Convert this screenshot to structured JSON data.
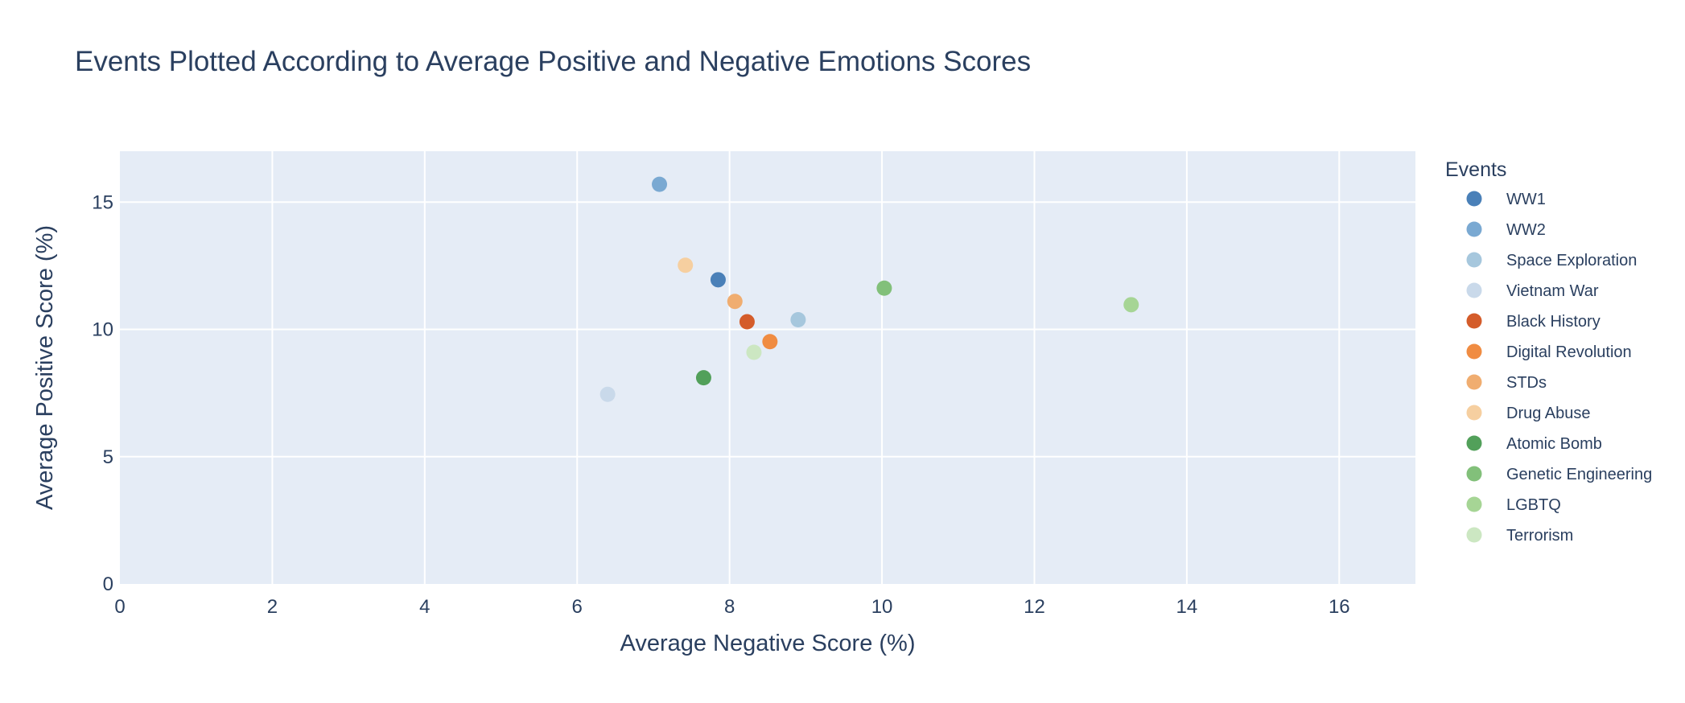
{
  "chart_data": {
    "type": "scatter",
    "title": "Events Plotted According to Average Positive and Negative Emotions Scores",
    "xlabel": "Average Negative Score (%)",
    "ylabel": "Average Positive Score (%)",
    "xlim": [
      0,
      17
    ],
    "ylim": [
      0,
      17
    ],
    "x_ticks": [
      0,
      2,
      4,
      6,
      8,
      10,
      12,
      14,
      16
    ],
    "y_ticks": [
      0,
      5,
      10,
      15
    ],
    "grid": true,
    "legend_title": "Events",
    "legend_placement": "right",
    "series": [
      {
        "name": "WW1",
        "color": "#4a80b8",
        "x": 7.85,
        "y": 11.95
      },
      {
        "name": "WW2",
        "color": "#7aa9d2",
        "x": 7.08,
        "y": 15.7
      },
      {
        "name": "Space Exploration",
        "color": "#a6c7dd",
        "x": 8.9,
        "y": 10.38
      },
      {
        "name": "Vietnam War",
        "color": "#c9d9ea",
        "x": 6.4,
        "y": 7.45
      },
      {
        "name": "Black History",
        "color": "#d45c2a",
        "x": 8.23,
        "y": 10.3
      },
      {
        "name": "Digital Revolution",
        "color": "#f08c42",
        "x": 8.53,
        "y": 9.52
      },
      {
        "name": "STDs",
        "color": "#f0ad70",
        "x": 8.07,
        "y": 11.1
      },
      {
        "name": "Drug Abuse",
        "color": "#f6cfa0",
        "x": 7.42,
        "y": 12.52
      },
      {
        "name": "Atomic Bomb",
        "color": "#52a05a",
        "x": 7.66,
        "y": 8.1
      },
      {
        "name": "Genetic Engineering",
        "color": "#82c07a",
        "x": 10.03,
        "y": 11.62
      },
      {
        "name": "LGBTQ",
        "color": "#a6d595",
        "x": 13.27,
        "y": 10.97
      },
      {
        "name": "Terrorism",
        "color": "#cce7c2",
        "x": 8.32,
        "y": 9.1
      }
    ]
  }
}
